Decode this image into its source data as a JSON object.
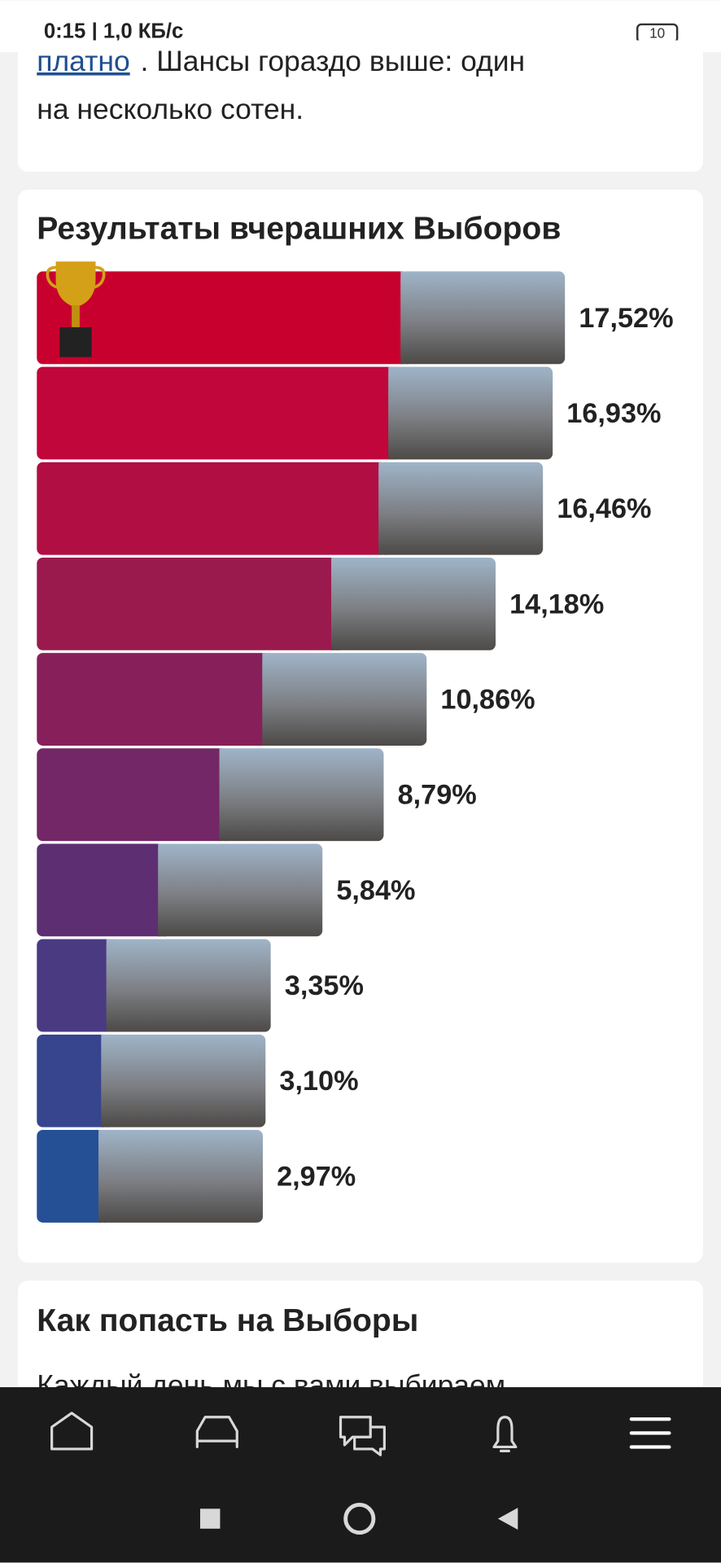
{
  "status_bar": {
    "time": "0:15",
    "speed": "| 1,0 КБ/с",
    "battery": "10"
  },
  "intro": {
    "link": "платно",
    "line1": ". Шансы гораздо выше: один",
    "line2": "на несколько сотен."
  },
  "results": {
    "title": "Результаты вчерашних Выборов",
    "bars": [
      {
        "value": 17.52,
        "label": "17,52%",
        "color": "#c8002e"
      },
      {
        "value": 16.93,
        "label": "16,93%",
        "color": "#c1063b"
      },
      {
        "value": 16.46,
        "label": "16,46%",
        "color": "#b10e44"
      },
      {
        "value": 14.18,
        "label": "14,18%",
        "color": "#9a1a4e"
      },
      {
        "value": 10.86,
        "label": "10,86%",
        "color": "#87205a"
      },
      {
        "value": 8.79,
        "label": "8,79%",
        "color": "#732766"
      },
      {
        "value": 5.84,
        "label": "5,84%",
        "color": "#5e2e72"
      },
      {
        "value": 3.35,
        "label": "3,35%",
        "color": "#4a3a82"
      },
      {
        "value": 3.1,
        "label": "3,10%",
        "color": "#37448e"
      },
      {
        "value": 2.97,
        "label": "2,97%",
        "color": "#255096"
      }
    ]
  },
  "section2": {
    "title": "Как попасть на Выборы",
    "text": "Каждый день мы с вами выбираем"
  }
}
